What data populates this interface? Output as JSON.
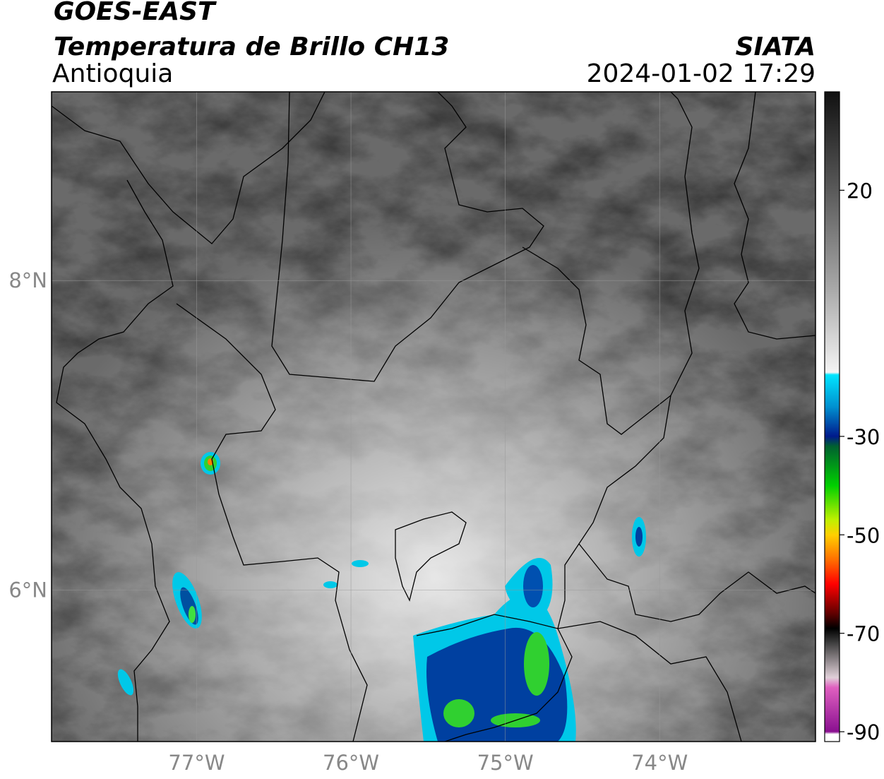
{
  "header": {
    "title": "GOES-EAST",
    "subtitle": "Temperatura de Brillo CH13",
    "source": "SIATA",
    "region": "Antioquia",
    "timestamp": "2024-01-02 17:29"
  },
  "map": {
    "xlim": [
      -77.94,
      -72.99
    ],
    "ylim": [
      5.02,
      9.22
    ],
    "xticks": [
      {
        "value": -77,
        "label": "77°W"
      },
      {
        "value": -76,
        "label": "76°W"
      },
      {
        "value": -75,
        "label": "75°W"
      },
      {
        "value": -74,
        "label": "74°W"
      }
    ],
    "yticks": [
      {
        "value": 8,
        "label": "8°N"
      },
      {
        "value": 6,
        "label": "6°N"
      }
    ],
    "grid": true
  },
  "colorbar": {
    "clim": [
      -92,
      40
    ],
    "ticks": [
      20,
      -30,
      -50,
      -70,
      -90
    ],
    "stops": [
      {
        "value": 40,
        "color": "#111111"
      },
      {
        "value": 20,
        "color": "#5a5a5a"
      },
      {
        "value": 0,
        "color": "#a8a8a8"
      },
      {
        "value": -17,
        "color": "#f4f4f4"
      },
      {
        "value": -17.5,
        "color": "#00e5ff"
      },
      {
        "value": -24,
        "color": "#0090d0"
      },
      {
        "value": -30,
        "color": "#001a8c"
      },
      {
        "value": -32,
        "color": "#006030"
      },
      {
        "value": -40,
        "color": "#00d000"
      },
      {
        "value": -47,
        "color": "#c0f000"
      },
      {
        "value": -50,
        "color": "#ffd000"
      },
      {
        "value": -55,
        "color": "#ff7000"
      },
      {
        "value": -60,
        "color": "#ff0000"
      },
      {
        "value": -66,
        "color": "#600000"
      },
      {
        "value": -69,
        "color": "#000000"
      },
      {
        "value": -72,
        "color": "#404040"
      },
      {
        "value": -79,
        "color": "#e0d0d8"
      },
      {
        "value": -81,
        "color": "#e060c0"
      },
      {
        "value": -90,
        "color": "#8a1090"
      },
      {
        "value": -90.5,
        "color": "#ffffff"
      },
      {
        "value": -92,
        "color": "#ffffff"
      }
    ]
  }
}
